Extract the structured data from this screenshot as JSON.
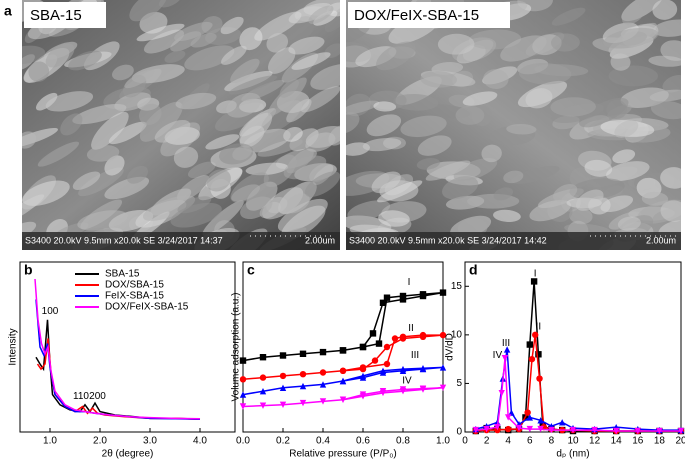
{
  "images": {
    "label": "a",
    "panels": [
      {
        "title": "SBA-15",
        "info": "S3400 20.0kV 9.5mm x20.0k SE  3/24/2017 14:37",
        "scale": "2.00um"
      },
      {
        "title": "DOX/FeIX-SBA-15",
        "info": "S3400 20.0kV 9.5mm x20.0k SE  3/24/2017 14:42",
        "scale": "2.00um"
      }
    ]
  },
  "chart_data": [
    {
      "type": "line",
      "label": "b",
      "xlabel": "2θ (degree)",
      "ylabel": "Intensity",
      "xlim": [
        0.4,
        4.7
      ],
      "ylim": [
        0,
        100
      ],
      "xticks": [
        {
          "value": 1,
          "label": "1.0"
        },
        {
          "value": 2,
          "label": "2.0"
        },
        {
          "value": 3,
          "label": "3.0"
        },
        {
          "value": 4,
          "label": "4.0"
        }
      ],
      "legend": "upper right",
      "annotations": [
        {
          "text": "100",
          "x": 1.0,
          "y": 71
        },
        {
          "text": "110",
          "x": 1.62,
          "y": 21
        },
        {
          "text": "200",
          "x": 1.95,
          "y": 21
        }
      ],
      "series": [
        {
          "name": "SBA-15",
          "color": "#000000",
          "x": [
            0.72,
            0.8,
            0.87,
            0.95,
            1.0,
            1.05,
            1.2,
            1.4,
            1.6,
            1.7,
            1.8,
            1.9,
            2.0,
            2.3,
            2.7,
            3.0,
            3.5,
            4.0
          ],
          "values": [
            44,
            40,
            37,
            66,
            40,
            22,
            16,
            13,
            12,
            16,
            12,
            17,
            12,
            10,
            9,
            8,
            8,
            7.6
          ]
        },
        {
          "name": "DOX/SBA-15",
          "color": "#ff0000",
          "x": [
            0.75,
            0.82,
            0.9,
            0.96,
            1.02,
            1.1,
            1.3,
            1.5,
            1.65,
            1.75,
            1.85,
            1.95,
            2.1,
            2.5,
            3.0,
            3.5,
            4.0
          ],
          "values": [
            40,
            37,
            40,
            55,
            35,
            22,
            15,
            12,
            15,
            11,
            14,
            11,
            10,
            9,
            8,
            8,
            7.5
          ]
        },
        {
          "name": "FeIX-SBA-15",
          "color": "#0000ff",
          "x": [
            0.72,
            0.8,
            0.88,
            0.95,
            1.0,
            1.1,
            1.3,
            1.5,
            1.7,
            1.9,
            2.2,
            2.6,
            3.0,
            3.5,
            4.0
          ],
          "values": [
            78,
            50,
            45,
            52,
            38,
            22,
            15,
            12,
            12,
            11,
            10,
            9,
            8,
            7.8,
            7.5
          ]
        },
        {
          "name": "DOX/FeIX-SBA-15",
          "color": "#ff00ff",
          "x": [
            0.7,
            0.76,
            0.83,
            0.9,
            0.96,
            1.02,
            1.1,
            1.3,
            1.5,
            1.7,
            1.9,
            2.2,
            2.6,
            3.0,
            3.5,
            4.0
          ],
          "values": [
            90,
            66,
            52,
            46,
            50,
            36,
            24,
            16,
            13,
            12,
            11,
            10,
            9,
            8.5,
            8,
            7.8
          ]
        }
      ]
    },
    {
      "type": "line",
      "label": "c",
      "xlabel": "Relative pressure (P/P₀)",
      "ylabel": "Volume adsorption (a.u.)",
      "xlim": [
        0,
        1
      ],
      "ylim": [
        0,
        100
      ],
      "xticks": [
        {
          "value": 0,
          "label": "0.0"
        },
        {
          "value": 0.2,
          "label": "0.2"
        },
        {
          "value": 0.4,
          "label": "0.4"
        },
        {
          "value": 0.6,
          "label": "0.6"
        },
        {
          "value": 0.8,
          "label": "0.8"
        },
        {
          "value": 1,
          "label": "1.0"
        }
      ],
      "annotations": [
        {
          "text": "I",
          "x": 0.83,
          "y": 88
        },
        {
          "text": "II",
          "x": 0.84,
          "y": 61
        },
        {
          "text": "III",
          "x": 0.86,
          "y": 45
        },
        {
          "text": "IV",
          "x": 0.82,
          "y": 30
        }
      ],
      "series": [
        {
          "name": "I",
          "color": "#000000",
          "marker": "square",
          "x": [
            0,
            0.1,
            0.2,
            0.3,
            0.4,
            0.5,
            0.6,
            0.65,
            0.7,
            0.8,
            0.9,
            1.0,
            0.9,
            0.8,
            0.72,
            0.68,
            0.6,
            0.5
          ],
          "values": [
            42,
            44,
            45,
            46,
            47,
            48,
            50,
            58,
            76,
            78,
            80,
            82,
            81,
            80,
            79,
            52,
            50,
            48
          ]
        },
        {
          "name": "II",
          "color": "#ff0000",
          "marker": "circle",
          "x": [
            0,
            0.1,
            0.2,
            0.3,
            0.4,
            0.5,
            0.6,
            0.66,
            0.72,
            0.8,
            0.9,
            1.0,
            0.9,
            0.8,
            0.76,
            0.72,
            0.6,
            0.5
          ],
          "values": [
            31,
            32,
            33,
            34,
            35,
            36,
            37,
            42,
            50,
            55,
            56,
            57,
            57,
            56,
            55,
            40,
            38,
            36
          ]
        },
        {
          "name": "III",
          "color": "#0000ff",
          "marker": "triangle",
          "x": [
            0,
            0.1,
            0.2,
            0.3,
            0.4,
            0.5,
            0.6,
            0.7,
            0.8,
            0.9,
            1.0,
            0.9,
            0.8,
            0.7,
            0.6,
            0.5
          ],
          "values": [
            22,
            24,
            26,
            27,
            28,
            30,
            32,
            35,
            36,
            37,
            38,
            37.5,
            37,
            36,
            33,
            30
          ]
        },
        {
          "name": "IV",
          "color": "#ff00ff",
          "marker": "triangle-down",
          "x": [
            0,
            0.1,
            0.2,
            0.3,
            0.4,
            0.5,
            0.6,
            0.7,
            0.8,
            0.9,
            1.0,
            0.9,
            0.8,
            0.7,
            0.6,
            0.5
          ],
          "values": [
            15,
            15.5,
            16,
            17,
            18,
            19,
            21,
            23,
            24,
            25,
            26,
            25.5,
            25,
            24,
            22,
            19
          ]
        }
      ]
    },
    {
      "type": "line",
      "label": "d",
      "xlabel": "dₚ (nm)",
      "ylabel": "dV/dD",
      "xlim": [
        0,
        20
      ],
      "ylim": [
        0,
        17.5
      ],
      "xticks": [
        0,
        2,
        4,
        6,
        8,
        10,
        12,
        14,
        16,
        18,
        20
      ],
      "yticks": [
        0,
        5,
        10,
        15
      ],
      "annotations": [
        {
          "text": "I",
          "x": 6.5,
          "y": 16.3
        },
        {
          "text": "II",
          "x": 6.8,
          "y": 10.8
        },
        {
          "text": "III",
          "x": 3.8,
          "y": 9.1
        },
        {
          "text": "IV",
          "x": 3.0,
          "y": 7.9
        }
      ],
      "series": [
        {
          "name": "I",
          "color": "#000000",
          "marker": "square",
          "x": [
            1,
            2,
            3,
            4,
            5,
            5.6,
            6,
            6.4,
            6.8,
            7.2,
            8,
            9,
            10,
            12,
            14,
            16,
            18,
            20
          ],
          "values": [
            0.1,
            0.4,
            0.3,
            0.2,
            0.3,
            1.5,
            9.0,
            15.5,
            8.0,
            0.6,
            0.3,
            0.2,
            0.1,
            0.1,
            0.1,
            0.1,
            0.1,
            0.1
          ]
        },
        {
          "name": "II",
          "color": "#ff0000",
          "marker": "circle",
          "x": [
            1,
            2,
            3,
            4,
            5,
            5.8,
            6.2,
            6.5,
            6.9,
            7.3,
            8,
            9,
            10,
            12,
            14,
            16,
            18,
            20
          ],
          "values": [
            0.1,
            0.2,
            0.2,
            0.3,
            0.3,
            2.0,
            7.5,
            10.0,
            5.5,
            0.5,
            0.3,
            0.2,
            0.2,
            0.1,
            0.1,
            0.1,
            0.1,
            0.1
          ]
        },
        {
          "name": "III",
          "color": "#0000ff",
          "marker": "triangle",
          "x": [
            1,
            2,
            3,
            3.5,
            3.9,
            4.3,
            5,
            6,
            7,
            8,
            9,
            10,
            12,
            14,
            16,
            18,
            20
          ],
          "values": [
            0.3,
            0.6,
            1.0,
            5.5,
            8.5,
            2.0,
            0.8,
            1.5,
            1.2,
            0.6,
            1.0,
            0.4,
            0.3,
            0.5,
            0.3,
            0.2,
            0.2
          ]
        },
        {
          "name": "IV",
          "color": "#ff00ff",
          "marker": "triangle-down",
          "x": [
            1,
            2,
            3,
            3.4,
            3.7,
            4.0,
            5,
            6,
            7,
            8,
            10,
            12,
            14,
            16,
            18,
            20
          ],
          "values": [
            0.2,
            0.3,
            0.5,
            4.0,
            7.6,
            1.5,
            0.4,
            0.3,
            0.3,
            0.2,
            0.2,
            0.2,
            0.1,
            0.1,
            0.1,
            0.1
          ]
        }
      ]
    }
  ]
}
